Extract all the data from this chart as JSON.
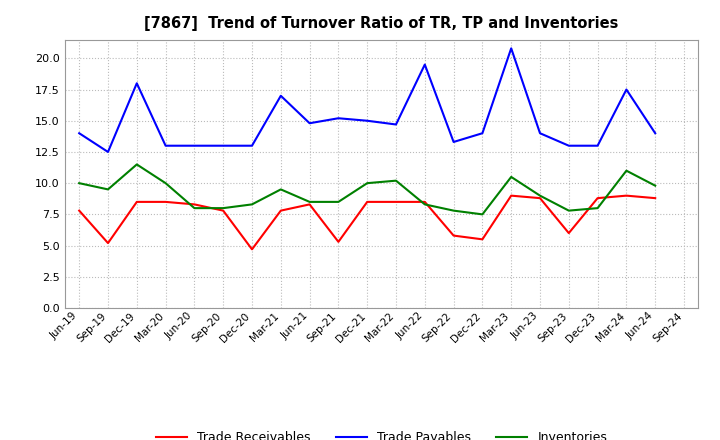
{
  "title": "[7867]  Trend of Turnover Ratio of TR, TP and Inventories",
  "x_labels": [
    "Jun-19",
    "Sep-19",
    "Dec-19",
    "Mar-20",
    "Jun-20",
    "Sep-20",
    "Dec-20",
    "Mar-21",
    "Jun-21",
    "Sep-21",
    "Dec-21",
    "Mar-22",
    "Jun-22",
    "Sep-22",
    "Dec-22",
    "Mar-23",
    "Jun-23",
    "Sep-23",
    "Dec-23",
    "Mar-24",
    "Jun-24",
    "Sep-24"
  ],
  "trade_receivables": [
    7.8,
    5.2,
    8.5,
    8.5,
    8.3,
    7.8,
    4.7,
    7.8,
    8.3,
    5.3,
    8.5,
    8.5,
    8.5,
    5.8,
    5.5,
    9.0,
    8.8,
    6.0,
    8.8,
    9.0,
    8.8,
    null
  ],
  "trade_payables": [
    14.0,
    12.5,
    18.0,
    13.0,
    13.0,
    13.0,
    13.0,
    17.0,
    14.8,
    15.2,
    15.0,
    14.7,
    19.5,
    13.3,
    14.0,
    20.8,
    14.0,
    13.0,
    13.0,
    17.5,
    14.0,
    null
  ],
  "inventories": [
    10.0,
    9.5,
    11.5,
    10.0,
    8.0,
    8.0,
    8.3,
    9.5,
    8.5,
    8.5,
    10.0,
    10.2,
    8.3,
    7.8,
    7.5,
    10.5,
    9.0,
    7.8,
    8.0,
    11.0,
    9.8,
    null
  ],
  "ylim": [
    0,
    21.5
  ],
  "yticks": [
    0.0,
    2.5,
    5.0,
    7.5,
    10.0,
    12.5,
    15.0,
    17.5,
    20.0
  ],
  "line_color_tr": "#ff0000",
  "line_color_tp": "#0000ff",
  "line_color_inv": "#008000",
  "background_color": "#ffffff",
  "grid_color": "#bbbbbb",
  "legend_labels": [
    "Trade Receivables",
    "Trade Payables",
    "Inventories"
  ]
}
